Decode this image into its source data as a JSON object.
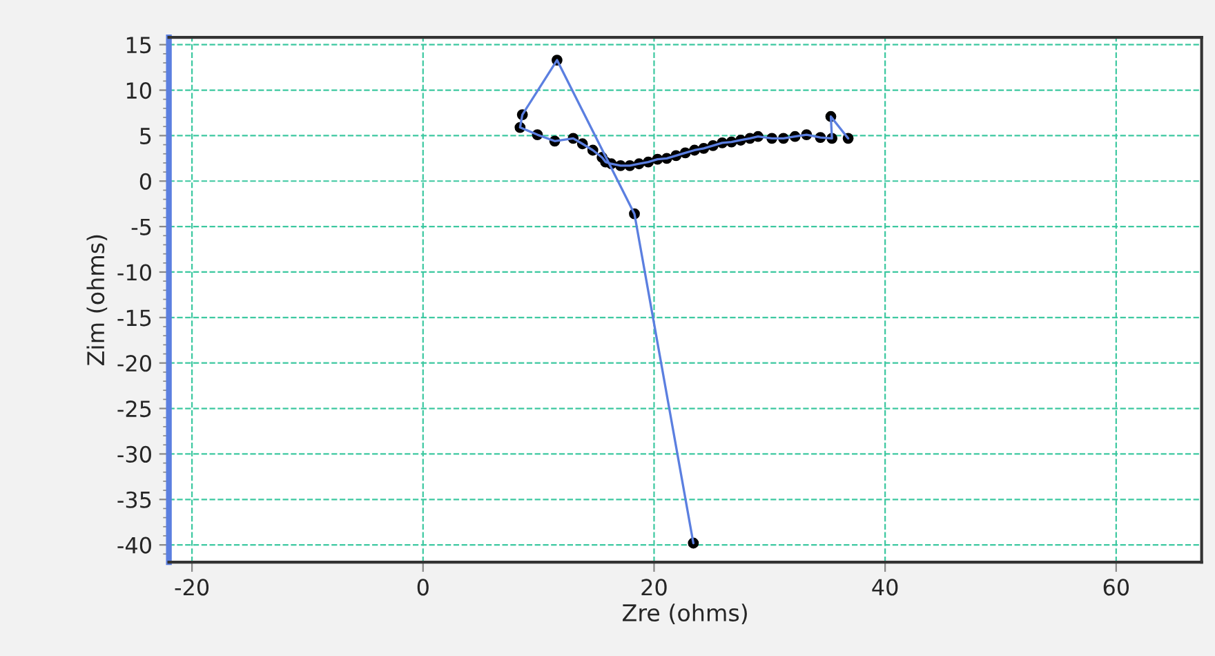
{
  "chart_data": {
    "type": "line",
    "xlabel": "Zre (ohms)",
    "ylabel": "Zim (ohms)",
    "xlim": [
      -22,
      67.4
    ],
    "ylim": [
      -41.9,
      15.8
    ],
    "xticks": [
      -20,
      0,
      20,
      40,
      60
    ],
    "yticks": [
      -40,
      -35,
      -30,
      -25,
      -20,
      -15,
      -10,
      -5,
      0,
      5,
      10,
      15
    ],
    "grid": true,
    "marker": "circle",
    "line_style": "solid",
    "legend": false,
    "series": [
      {
        "color": "#5b7fe0",
        "x": [
          23.4,
          18.3,
          11.6,
          8.6,
          8.4,
          9.9,
          11.4,
          13.0,
          13.8,
          14.7,
          15.5,
          15.8,
          16.3,
          17.1,
          17.9,
          18.7,
          19.5,
          20.3,
          21.1,
          21.9,
          22.7,
          23.5,
          24.3,
          25.1,
          25.9,
          26.7,
          27.5,
          28.3,
          29.0,
          30.2,
          31.2,
          32.2,
          33.2,
          34.4,
          35.4,
          35.3,
          36.8
        ],
        "values": [
          -39.8,
          -3.6,
          13.3,
          7.3,
          5.9,
          5.1,
          4.4,
          4.7,
          4.1,
          3.4,
          2.6,
          2.1,
          1.9,
          1.7,
          1.7,
          1.9,
          2.1,
          2.4,
          2.5,
          2.8,
          3.1,
          3.4,
          3.6,
          3.9,
          4.2,
          4.3,
          4.5,
          4.7,
          4.9,
          4.7,
          4.7,
          4.9,
          5.1,
          4.8,
          4.7,
          7.1,
          4.7
        ]
      }
    ]
  }
}
